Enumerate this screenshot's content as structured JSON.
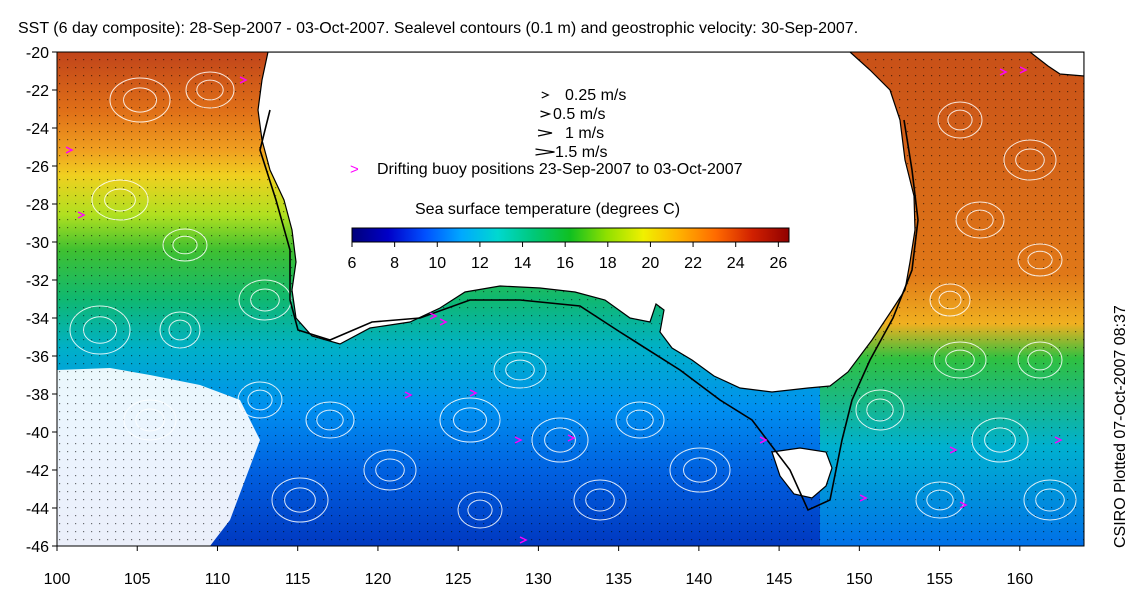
{
  "title": "SST (6 day composite): 28-Sep-2007 - 03-Oct-2007. Sealevel contours (0.1 m) and geostrophic velocity: 30-Sep-2007.",
  "credit": "CSIRO Plotted 07-Oct-2007 08:37",
  "legend": {
    "velocity_scale": [
      {
        "label": "0.25 m/s",
        "speed": 0.25
      },
      {
        "label": "0.5 m/s",
        "speed": 0.5
      },
      {
        "label": "1 m/s",
        "speed": 1
      },
      {
        "label": "1.5 m/s",
        "speed": 1.5
      }
    ],
    "buoy_marker": ">",
    "buoy_label": "Drifting buoy positions 23-Sep-2007 to 03-Oct-2007",
    "colorbar_title": "Sea surface temperature (degrees C)",
    "colorbar_ticks": [
      "6",
      "8",
      "10",
      "12",
      "14",
      "16",
      "18",
      "20",
      "22",
      "24",
      "26"
    ],
    "colorbar_range": [
      6,
      26.5
    ],
    "colorbar_colors": [
      "#00007a",
      "#0000c8",
      "#0050ff",
      "#00a8ff",
      "#00d8d0",
      "#00c878",
      "#10c020",
      "#90e000",
      "#f0f000",
      "#ffb000",
      "#ff6a00",
      "#d02000",
      "#900000"
    ]
  },
  "axes": {
    "x_ticks": [
      "100",
      "105",
      "110",
      "115",
      "120",
      "125",
      "130",
      "135",
      "140",
      "145",
      "150",
      "155",
      "160"
    ],
    "y_ticks": [
      "-20",
      "-22",
      "-24",
      "-26",
      "-28",
      "-30",
      "-32",
      "-34",
      "-36",
      "-38",
      "-40",
      "-42",
      "-44",
      "-46"
    ],
    "lon_range": [
      100,
      164
    ],
    "lat_range": [
      -46,
      -20
    ]
  },
  "colors": {
    "land": "#ffffff",
    "coast": "#000000",
    "contour": "#ffffff",
    "buoy": "#ff00ff"
  }
}
